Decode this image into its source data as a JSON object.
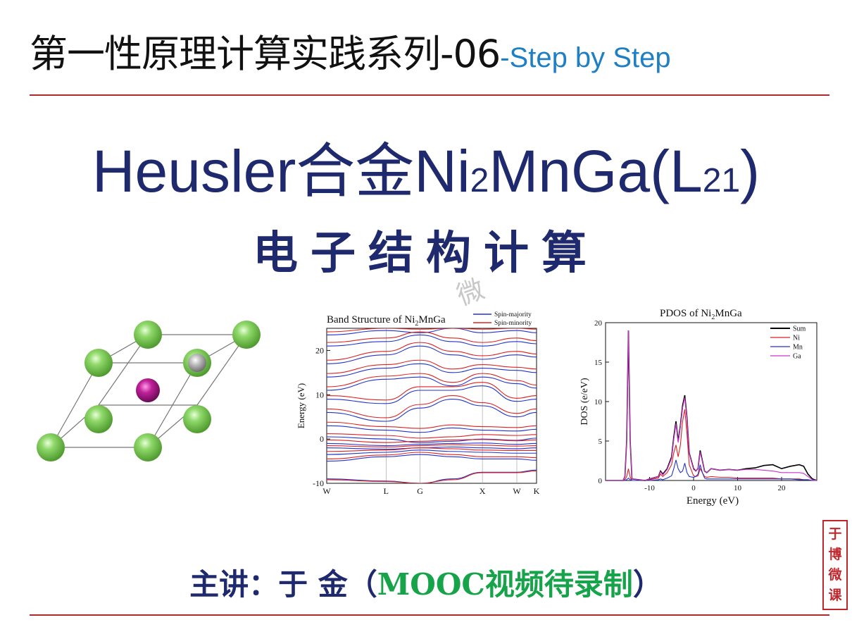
{
  "title": {
    "main": "第一性原理计算实践系列-06",
    "sub": "-Step by Step"
  },
  "heading": {
    "part1": "Heusler合金Ni",
    "sub1": "2",
    "part2": "MnGa(L",
    "sub2": "21",
    "part3": ")"
  },
  "subheading": "电子结构计算",
  "watermark": "微",
  "speaker": {
    "prefix": "主讲：于 金（",
    "mooc": "MOOC视频待录制",
    "suffix": "）"
  },
  "seal": [
    "于",
    "博",
    "微",
    "课"
  ],
  "colors": {
    "title_blue": "#1f7fc4",
    "heading_navy": "#1f2a6e",
    "rule_red": "#b02a2a",
    "mooc_green": "#16a34a",
    "spin_major": "#2233cc",
    "spin_minor": "#dd2222",
    "sum": "#000000",
    "ni": "#dd2222",
    "mn": "#2233cc",
    "ga": "#cc33cc"
  },
  "chart_data": [
    {
      "type": "line",
      "title": "Band Structure of Ni2MnGa",
      "title_parts": {
        "pre": "Band Structure of Ni",
        "sub": "2",
        "post": "MnGa"
      },
      "ylabel": "Energy (eV)",
      "ylim": [
        -10,
        25
      ],
      "yticks": [
        -10,
        0,
        10,
        20
      ],
      "kpath": [
        {
          "label": "W",
          "pos": 0
        },
        {
          "label": "L",
          "pos": 0.283
        },
        {
          "label": "G",
          "pos": 0.445
        },
        {
          "label": "X",
          "pos": 0.742
        },
        {
          "label": "W",
          "pos": 0.906
        },
        {
          "label": "K",
          "pos": 1.0
        }
      ],
      "legend": {
        "placement": "top-right"
      },
      "series": [
        {
          "name": "Spin-majority",
          "color": "#2233cc",
          "bands": [
            [
              -9.0,
              -9.5,
              -10.0,
              -9.0,
              -7.5,
              -7.5,
              -7.0
            ],
            [
              -5.0,
              -4.0,
              -3.5,
              -4.0,
              -4.5,
              -4.5,
              -4.8
            ],
            [
              -3.5,
              -3.0,
              -2.5,
              -2.8,
              -3.0,
              -3.2,
              -3.2
            ],
            [
              -2.0,
              -2.3,
              -2.0,
              -1.8,
              -2.0,
              -2.2,
              -2.0
            ],
            [
              -1.0,
              -1.5,
              -1.2,
              -1.0,
              -0.9,
              -1.2,
              -1.0
            ],
            [
              0.5,
              0.0,
              -0.8,
              -0.5,
              0.0,
              -0.3,
              0.2
            ],
            [
              3.0,
              2.0,
              1.5,
              2.5,
              2.0,
              1.8,
              2.2
            ],
            [
              6.0,
              4.0,
              7.0,
              9.0,
              7.5,
              5.0,
              6.0
            ],
            [
              9.0,
              8.0,
              11.0,
              11.0,
              12.0,
              8.5,
              9.0
            ],
            [
              11.0,
              13.5,
              14.0,
              12.0,
              14.0,
              12.5,
              11.5
            ],
            [
              14.0,
              16.0,
              17.0,
              15.0,
              16.0,
              15.5,
              15.0
            ],
            [
              17.0,
              19.0,
              21.0,
              19.0,
              18.0,
              19.0,
              18.5
            ],
            [
              21.0,
              22.0,
              23.5,
              22.0,
              21.0,
              22.0,
              21.5
            ],
            [
              23.5,
              24.5,
              24.0,
              25.0,
              24.0,
              24.5,
              24.0
            ]
          ]
        },
        {
          "name": "Spin-minority",
          "color": "#dd2222",
          "bands": [
            [
              -9.2,
              -9.6,
              -10.0,
              -9.2,
              -7.6,
              -7.6,
              -7.2
            ],
            [
              -4.5,
              -3.6,
              -3.0,
              -3.5,
              -4.0,
              -4.0,
              -4.2
            ],
            [
              -2.8,
              -2.5,
              -2.0,
              -2.2,
              -2.5,
              -2.6,
              -2.6
            ],
            [
              -1.5,
              -1.8,
              -1.5,
              -1.3,
              -1.4,
              -1.6,
              -1.5
            ],
            [
              -0.2,
              -0.8,
              -0.5,
              -0.2,
              -0.1,
              -0.4,
              -0.2
            ],
            [
              1.2,
              0.8,
              0.2,
              0.5,
              1.0,
              0.8,
              1.0
            ],
            [
              3.8,
              2.8,
              2.4,
              3.2,
              2.8,
              2.6,
              3.0
            ],
            [
              6.8,
              4.8,
              7.8,
              9.8,
              8.2,
              5.8,
              6.8
            ],
            [
              9.8,
              8.8,
              11.8,
              11.8,
              12.8,
              9.2,
              9.8
            ],
            [
              11.8,
              14.2,
              14.8,
              12.8,
              14.8,
              13.2,
              12.2
            ],
            [
              14.8,
              16.8,
              17.8,
              15.8,
              16.8,
              16.2,
              15.8
            ],
            [
              17.8,
              19.8,
              21.8,
              19.8,
              18.8,
              19.8,
              19.2
            ],
            [
              21.8,
              22.8,
              24.2,
              22.8,
              21.8,
              22.8,
              22.2
            ],
            [
              24.2,
              25.0,
              24.8,
              25.0,
              24.8,
              25.0,
              24.8
            ]
          ]
        }
      ],
      "grid": false
    },
    {
      "type": "line",
      "title": "PDOS of Ni2MnGa",
      "title_parts": {
        "pre": "PDOS of Ni",
        "sub": "2",
        "post": "MnGa"
      },
      "xlabel": "Energy (eV)",
      "ylabel": "DOS (e/eV)",
      "xlim": [
        -20,
        28
      ],
      "ylim": [
        0,
        20
      ],
      "xticks": [
        -10,
        0,
        10,
        20
      ],
      "yticks": [
        0,
        5,
        10,
        15,
        20
      ],
      "legend": {
        "placement": "top-right"
      },
      "x": [
        -20,
        -16,
        -15.6,
        -15.2,
        -14.8,
        -14.4,
        -14,
        -11,
        -10,
        -8,
        -7.5,
        -7,
        -6,
        -5,
        -4.5,
        -4,
        -3.5,
        -3,
        -2.5,
        -2,
        -1.5,
        -1,
        0,
        0.5,
        1,
        1.5,
        2,
        2.5,
        3,
        4,
        6,
        8,
        10,
        12,
        14,
        16,
        18,
        20,
        22,
        24,
        25,
        26,
        27,
        28
      ],
      "series": [
        {
          "name": "Sum",
          "color": "#000000",
          "values": [
            0,
            0,
            0.5,
            5,
            19,
            5,
            0.2,
            0,
            0.2,
            0.5,
            1.2,
            0.8,
            1.5,
            3.0,
            5.5,
            7.5,
            5.0,
            7.0,
            9.5,
            10.8,
            8.0,
            3.5,
            1.5,
            1.2,
            1.5,
            3.8,
            2.5,
            1.2,
            1.0,
            1.5,
            1.3,
            1.4,
            1.3,
            1.5,
            1.6,
            1.9,
            2.0,
            1.5,
            1.8,
            2.0,
            1.8,
            0.8,
            0.2,
            0
          ]
        },
        {
          "name": "Ni",
          "color": "#dd2222",
          "values": [
            0,
            0,
            0.1,
            0.5,
            1.5,
            0.4,
            0,
            0,
            0.1,
            0.3,
            0.8,
            0.5,
            1.0,
            2.0,
            3.5,
            4.5,
            3.0,
            4.5,
            7.5,
            9.0,
            6.0,
            2.0,
            0.6,
            0.5,
            0.6,
            1.5,
            1.0,
            0.5,
            0.4,
            0.5,
            0.4,
            0.4,
            0.3,
            0.3,
            0.3,
            0.3,
            0.3,
            0.2,
            0.2,
            0.2,
            0.1,
            0.1,
            0,
            0
          ]
        },
        {
          "name": "Mn",
          "color": "#2233cc",
          "values": [
            0,
            0,
            0,
            0.1,
            0.3,
            0.1,
            0,
            0,
            0,
            0.1,
            0.2,
            0.1,
            0.3,
            0.6,
            1.5,
            2.6,
            1.5,
            1.0,
            1.2,
            2.2,
            1.0,
            0.5,
            0.4,
            0.5,
            0.8,
            2.0,
            1.0,
            0.3,
            0.2,
            0.2,
            0.2,
            0.2,
            0.2,
            0.2,
            0.2,
            0.2,
            0.2,
            0.2,
            0.2,
            0.1,
            0.1,
            0.1,
            0,
            0
          ]
        },
        {
          "name": "Ga",
          "color": "#cc33cc",
          "values": [
            0,
            0,
            0.5,
            5,
            19,
            5,
            0.2,
            0,
            0.2,
            0.5,
            1.1,
            0.7,
            1.4,
            2.8,
            5.2,
            7.2,
            4.8,
            6.8,
            9.2,
            10.5,
            7.8,
            3.4,
            1.4,
            1.2,
            1.5,
            3.6,
            2.4,
            1.2,
            1.0,
            1.5,
            1.3,
            1.4,
            1.3,
            1.4,
            1.4,
            1.3,
            1.2,
            1.0,
            1.0,
            1.0,
            0.9,
            0.5,
            0.1,
            0
          ]
        }
      ],
      "grid": false
    }
  ]
}
